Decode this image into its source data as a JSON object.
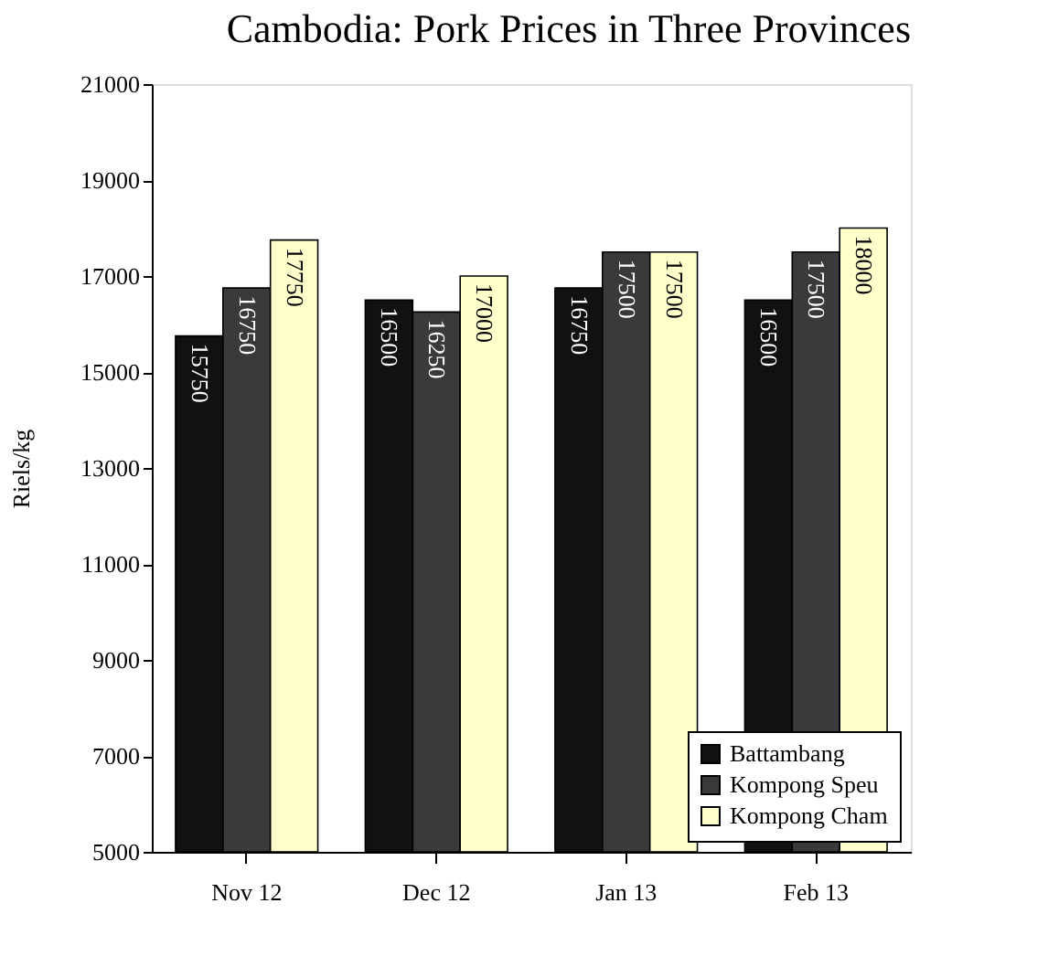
{
  "chart_data": {
    "type": "bar",
    "title": "Cambodia: Pork Prices in Three Provinces",
    "ylabel": "Riels/kg",
    "categories": [
      "Nov 12",
      "Dec 12",
      "Jan 13",
      "Feb 13"
    ],
    "series": [
      {
        "name": "Battambang",
        "color": "#111111",
        "values": [
          15750,
          16500,
          16750,
          16500
        ]
      },
      {
        "name": "Kompong Speu",
        "color": "#3a3a3a",
        "values": [
          16750,
          16250,
          17500,
          17500
        ]
      },
      {
        "name": "Kompong Cham",
        "color": "#ffffcc",
        "values": [
          17750,
          17000,
          17500,
          18000
        ]
      }
    ],
    "ylim": [
      5000,
      21000
    ],
    "yticks": [
      5000,
      7000,
      9000,
      11000,
      13000,
      15000,
      17000,
      19000,
      21000
    ],
    "grid": false,
    "legend": "bottom right",
    "data_labels": true
  }
}
